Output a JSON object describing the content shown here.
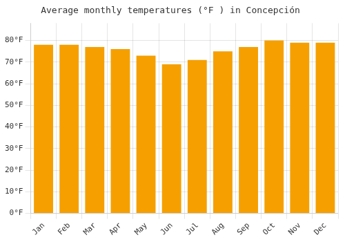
{
  "chart_data": {
    "type": "bar",
    "title": "Average monthly temperatures (°F ) in Concepción",
    "categories": [
      "Jan",
      "Feb",
      "Mar",
      "Apr",
      "May",
      "Jun",
      "Jul",
      "Aug",
      "Sep",
      "Oct",
      "Nov",
      "Dec"
    ],
    "values": [
      78,
      78,
      77,
      76,
      73,
      69,
      71,
      75,
      77,
      80,
      79,
      79
    ],
    "color": "#F5A000",
    "ylim": [
      0,
      88
    ],
    "yticks": [
      {
        "value": 0,
        "label": "0°F"
      },
      {
        "value": 10,
        "label": "10°F"
      },
      {
        "value": 20,
        "label": "20°F"
      },
      {
        "value": 30,
        "label": "30°F"
      },
      {
        "value": 40,
        "label": "40°F"
      },
      {
        "value": 50,
        "label": "50°F"
      },
      {
        "value": 60,
        "label": "60°F"
      },
      {
        "value": 70,
        "label": "70°F"
      },
      {
        "value": 80,
        "label": "80°F"
      }
    ],
    "grid": true
  }
}
